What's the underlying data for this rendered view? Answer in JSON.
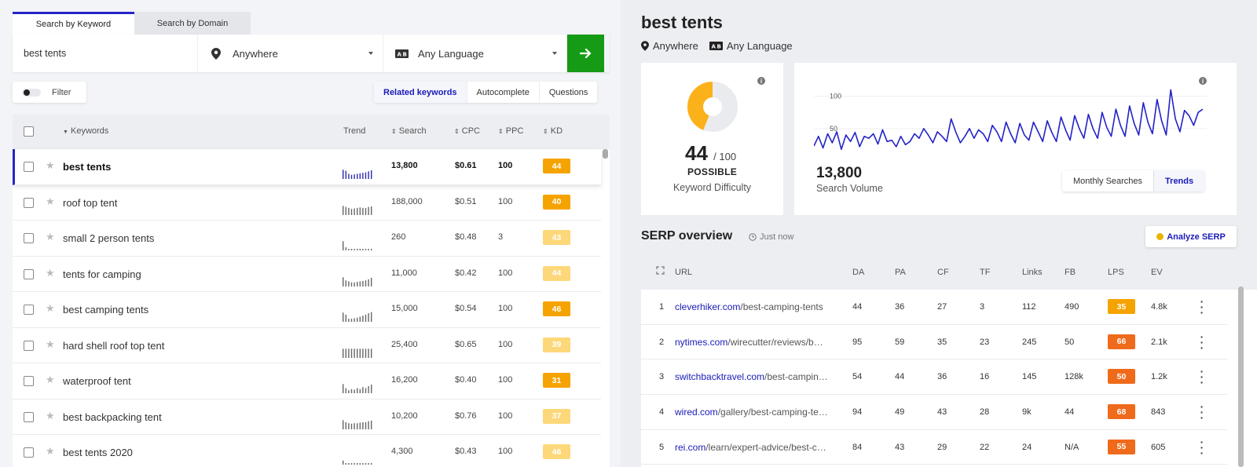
{
  "search": {
    "tabs": [
      "Search by Keyword",
      "Search by Domain"
    ],
    "keyword_value": "best tents",
    "location": "Anywhere",
    "language": "Any Language",
    "go_icon": "arrow-right-icon"
  },
  "filter_label": "Filter",
  "kw_tabs": [
    "Related keywords",
    "Autocomplete",
    "Questions"
  ],
  "table": {
    "headers": {
      "keywords": "Keywords",
      "trend": "Trend",
      "search": "Search",
      "cpc": "CPC",
      "ppc": "PPC",
      "kd": "KD"
    },
    "rows": [
      {
        "keyword": "best tents",
        "search": "13,800",
        "cpc": "$0.61",
        "ppc": "100",
        "kd": "44",
        "kd_color": "#f5a300",
        "trend_color": "#2a2aaa",
        "trend": [
          0.9,
          0.8,
          0.5,
          0.4,
          0.45,
          0.5,
          0.55,
          0.6,
          0.65,
          0.75,
          0.85
        ]
      },
      {
        "keyword": "roof top tent",
        "search": "188,000",
        "cpc": "$0.51",
        "ppc": "100",
        "kd": "40",
        "kd_color": "#f5a300",
        "trend_color": "#666",
        "trend": [
          0.9,
          0.8,
          0.7,
          0.6,
          0.65,
          0.7,
          0.75,
          0.7,
          0.7,
          0.8,
          0.85
        ]
      },
      {
        "keyword": "small 2 person tents",
        "search": "260",
        "cpc": "$0.48",
        "ppc": "3",
        "kd": "43",
        "kd_color": "#fdd87a",
        "trend_color": "#666",
        "trend": [
          0.9,
          0.3,
          0.1,
          0.1,
          0.1,
          0.1,
          0.1,
          0.1,
          0.1,
          0.1,
          0.1
        ]
      },
      {
        "keyword": "tents for camping",
        "search": "11,000",
        "cpc": "$0.42",
        "ppc": "100",
        "kd": "44",
        "kd_color": "#fdd87a",
        "trend_color": "#666",
        "trend": [
          0.9,
          0.6,
          0.5,
          0.4,
          0.4,
          0.45,
          0.5,
          0.55,
          0.6,
          0.7,
          0.85
        ]
      },
      {
        "keyword": "best camping tents",
        "search": "15,000",
        "cpc": "$0.54",
        "ppc": "100",
        "kd": "46",
        "kd_color": "#f5a300",
        "trend_color": "#666",
        "trend": [
          0.9,
          0.7,
          0.3,
          0.3,
          0.35,
          0.4,
          0.5,
          0.6,
          0.7,
          0.85,
          0.95
        ]
      },
      {
        "keyword": "hard shell roof top tent",
        "search": "25,400",
        "cpc": "$0.65",
        "ppc": "100",
        "kd": "39",
        "kd_color": "#fdd87a",
        "trend_color": "#666",
        "trend": [
          0.9,
          0.9,
          0.9,
          0.9,
          0.9,
          0.9,
          0.9,
          0.9,
          0.9,
          0.9,
          0.9
        ]
      },
      {
        "keyword": "waterproof tent",
        "search": "16,200",
        "cpc": "$0.40",
        "ppc": "100",
        "kd": "31",
        "kd_color": "#f5a300",
        "trend_color": "#666",
        "trend": [
          0.9,
          0.5,
          0.3,
          0.4,
          0.35,
          0.5,
          0.4,
          0.6,
          0.5,
          0.7,
          0.85
        ]
      },
      {
        "keyword": "best backpacking tent",
        "search": "10,200",
        "cpc": "$0.76",
        "ppc": "100",
        "kd": "37",
        "kd_color": "#fdd87a",
        "trend_color": "#666",
        "trend": [
          0.9,
          0.7,
          0.6,
          0.55,
          0.6,
          0.6,
          0.65,
          0.7,
          0.7,
          0.8,
          0.85
        ]
      },
      {
        "keyword": "best tents 2020",
        "search": "4,300",
        "cpc": "$0.43",
        "ppc": "100",
        "kd": "46",
        "kd_color": "#fdd87a",
        "trend_color": "#666",
        "trend": [
          0.4,
          0.1,
          0.1,
          0.1,
          0.1,
          0.1,
          0.1,
          0.1,
          0.1,
          0.1,
          0.1
        ]
      }
    ]
  },
  "detail": {
    "title": "best tents",
    "location": "Anywhere",
    "language": "Any Language",
    "kd_value": "44",
    "kd_max": "/ 100",
    "kd_label": "POSSIBLE",
    "kd_caption": "Keyword Difficulty",
    "kd_fraction": 0.44,
    "volume": "13,800",
    "volume_caption": "Search Volume",
    "seg_tabs": [
      "Monthly Searches",
      "Trends"
    ],
    "colors": {
      "kd": "#fbb11a",
      "line": "#2222c8",
      "green": "#169b16"
    }
  },
  "chart_data": {
    "type": "line",
    "title": "",
    "xlabel": "",
    "ylabel": "",
    "y_ticks": [
      "100",
      "50"
    ],
    "ylim": [
      0,
      125
    ],
    "series": [
      {
        "values": [
          23,
          38,
          20,
          42,
          28,
          45,
          18,
          40,
          30,
          44,
          22,
          38,
          35,
          42,
          26,
          48,
          30,
          32,
          22,
          38,
          25,
          30,
          42,
          35,
          50,
          40,
          28,
          45,
          38,
          30,
          65,
          45,
          28,
          38,
          50,
          35,
          48,
          42,
          30,
          55,
          45,
          30,
          60,
          42,
          28,
          58,
          40,
          32,
          60,
          45,
          30,
          62,
          44,
          30,
          68,
          48,
          32,
          70,
          50,
          35,
          72,
          50,
          35,
          75,
          52,
          38,
          80,
          55,
          38,
          85,
          58,
          40,
          90,
          60,
          42,
          95,
          62,
          40,
          110,
          65,
          45,
          78,
          70,
          55,
          75,
          80
        ]
      }
    ]
  },
  "serp": {
    "title": "SERP overview",
    "time": "Just now",
    "analyze_label": "Analyze SERP",
    "headers": {
      "url": "URL",
      "da": "DA",
      "pa": "PA",
      "cf": "CF",
      "tf": "TF",
      "links": "Links",
      "fb": "FB",
      "lps": "LPS",
      "ev": "EV"
    },
    "rows": [
      {
        "rank": "1",
        "domain": "cleverhiker.com",
        "path": "/best-camping-tents",
        "da": "44",
        "pa": "36",
        "cf": "27",
        "tf": "3",
        "links": "112",
        "fb": "490",
        "lps": "35",
        "lps_color": "#f5a300",
        "ev": "4.8k"
      },
      {
        "rank": "2",
        "domain": "nytimes.com",
        "path": "/wirecutter/reviews/b…",
        "da": "95",
        "pa": "59",
        "cf": "35",
        "tf": "23",
        "links": "245",
        "fb": "50",
        "lps": "66",
        "lps_color": "#ef6a1a",
        "ev": "2.1k"
      },
      {
        "rank": "3",
        "domain": "switchbacktravel.com",
        "path": "/best-campin…",
        "da": "54",
        "pa": "44",
        "cf": "36",
        "tf": "16",
        "links": "145",
        "fb": "128k",
        "lps": "50",
        "lps_color": "#ef6a1a",
        "ev": "1.2k"
      },
      {
        "rank": "4",
        "domain": "wired.com",
        "path": "/gallery/best-camping-te…",
        "da": "94",
        "pa": "49",
        "cf": "43",
        "tf": "28",
        "links": "9k",
        "fb": "44",
        "lps": "68",
        "lps_color": "#ef6a1a",
        "ev": "843"
      },
      {
        "rank": "5",
        "domain": "rei.com",
        "path": "/learn/expert-advice/best-c…",
        "da": "84",
        "pa": "43",
        "cf": "29",
        "tf": "22",
        "links": "24",
        "fb": "N/A",
        "lps": "55",
        "lps_color": "#ef6a1a",
        "ev": "605"
      }
    ]
  }
}
